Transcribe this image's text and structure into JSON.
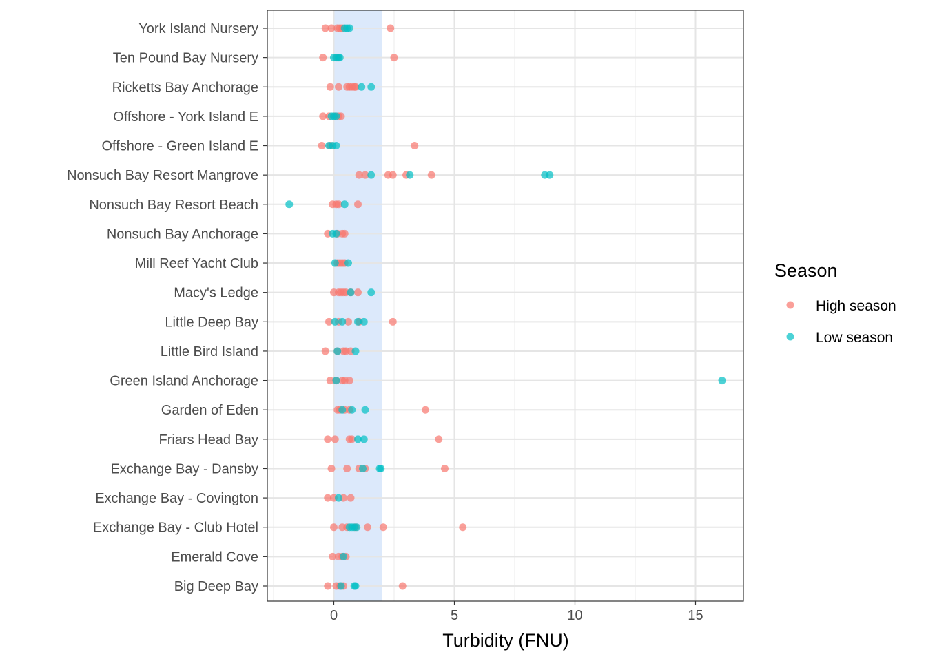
{
  "chart_data": {
    "type": "scatter",
    "xlabel": "Turbidity (FNU)",
    "ylabel": "",
    "xlim": [
      -2.7,
      17.0
    ],
    "x_ticks": [
      0,
      5,
      10,
      15
    ],
    "x_tick_labels": [
      "0",
      "5",
      "10",
      "15"
    ],
    "grid": true,
    "shaded_band": {
      "from": 0,
      "to": 2,
      "color": "#dce9fb"
    },
    "legend": {
      "title": "Season",
      "placement": "right"
    },
    "categories": [
      "York Island Nursery",
      "Ten Pound Bay Nursery",
      "Ricketts Bay Anchorage",
      "Offshore - York Island E",
      "Offshore - Green Island E",
      "Nonsuch Bay Resort Mangrove",
      "Nonsuch Bay Resort Beach",
      "Nonsuch Bay Anchorage",
      "Mill Reef Yacht Club",
      "Macy's Ledge",
      "Little Deep Bay",
      "Little Bird Island",
      "Green Island Anchorage",
      "Garden of Eden",
      "Friars Head Bay",
      "Exchange Bay - Dansby",
      "Exchange Bay - Covington",
      "Exchange Bay - Club Hotel",
      "Emerald Cove",
      "Big Deep Bay"
    ],
    "series": [
      {
        "name": "High season",
        "color": "#f8766d",
        "points": [
          {
            "site": "York Island Nursery",
            "x": [
              -0.35,
              -0.1,
              0.15,
              0.25,
              0.35,
              2.35
            ]
          },
          {
            "site": "Ten Pound Bay Nursery",
            "x": [
              -0.45,
              0.15,
              2.5
            ]
          },
          {
            "site": "Ricketts Bay Anchorage",
            "x": [
              -0.15,
              0.2,
              0.55,
              0.65,
              0.75,
              0.85,
              0.9
            ]
          },
          {
            "site": "Offshore - York Island E",
            "x": [
              -0.45,
              -0.2,
              0.05,
              0.2,
              0.3
            ]
          },
          {
            "site": "Offshore - Green Island E",
            "x": [
              -0.5,
              -0.15,
              3.35
            ]
          },
          {
            "site": "Nonsuch Bay Resort Mangrove",
            "x": [
              1.05,
              1.3,
              2.25,
              2.45,
              3.0,
              4.05
            ]
          },
          {
            "site": "Nonsuch Bay Resort Beach",
            "x": [
              -0.05,
              0.1,
              0.2,
              1.0
            ]
          },
          {
            "site": "Nonsuch Bay Anchorage",
            "x": [
              -0.25,
              0.15,
              0.35,
              0.45
            ]
          },
          {
            "site": "Mill Reef Yacht Club",
            "x": [
              0.15,
              0.25,
              0.35,
              0.45
            ]
          },
          {
            "site": "Macy's Ledge",
            "x": [
              0.0,
              0.2,
              0.3,
              0.4,
              0.5,
              0.7,
              1.0
            ]
          },
          {
            "site": "Little Deep Bay",
            "x": [
              -0.2,
              0.2,
              0.6,
              1.05,
              2.45
            ]
          },
          {
            "site": "Little Bird Island",
            "x": [
              -0.35,
              0.15,
              0.4,
              0.5,
              0.7
            ]
          },
          {
            "site": "Green Island Anchorage",
            "x": [
              -0.15,
              0.1,
              0.35,
              0.45,
              0.65
            ]
          },
          {
            "site": "Garden of Eden",
            "x": [
              0.15,
              0.25,
              0.45,
              0.65,
              3.8
            ]
          },
          {
            "site": "Friars Head Bay",
            "x": [
              -0.25,
              0.05,
              0.65,
              0.75,
              4.35
            ]
          },
          {
            "site": "Exchange Bay - Dansby",
            "x": [
              -0.1,
              0.55,
              1.05,
              1.3,
              4.6
            ]
          },
          {
            "site": "Exchange Bay - Covington",
            "x": [
              -0.25,
              0.0,
              0.4,
              0.7
            ]
          },
          {
            "site": "Exchange Bay - Club Hotel",
            "x": [
              0.0,
              0.35,
              0.55,
              0.9,
              1.4,
              2.05,
              5.35
            ]
          },
          {
            "site": "Emerald Cove",
            "x": [
              -0.05,
              0.2,
              0.35,
              0.5
            ]
          },
          {
            "site": "Big Deep Bay",
            "x": [
              -0.25,
              0.1,
              0.25,
              0.4,
              2.85
            ]
          }
        ]
      },
      {
        "name": "Low season",
        "color": "#00bfc4",
        "points": [
          {
            "site": "York Island Nursery",
            "x": [
              0.45,
              0.55,
              0.65
            ]
          },
          {
            "site": "Ten Pound Bay Nursery",
            "x": [
              0.0,
              0.1,
              0.2,
              0.25
            ]
          },
          {
            "site": "Ricketts Bay Anchorage",
            "x": [
              1.15,
              1.55
            ]
          },
          {
            "site": "Offshore - York Island E",
            "x": [
              -0.1,
              0.0,
              0.1
            ]
          },
          {
            "site": "Offshore - Green Island E",
            "x": [
              -0.2,
              -0.05,
              0.1
            ]
          },
          {
            "site": "Nonsuch Bay Resort Mangrove",
            "x": [
              1.55,
              3.15,
              8.75,
              8.95
            ]
          },
          {
            "site": "Nonsuch Bay Resort Beach",
            "x": [
              -1.85,
              0.45
            ]
          },
          {
            "site": "Nonsuch Bay Anchorage",
            "x": [
              -0.05,
              0.1
            ]
          },
          {
            "site": "Mill Reef Yacht Club",
            "x": [
              0.05,
              0.6
            ]
          },
          {
            "site": "Macy's Ledge",
            "x": [
              0.7,
              1.55
            ]
          },
          {
            "site": "Little Deep Bay",
            "x": [
              0.05,
              0.35,
              1.0,
              1.25
            ]
          },
          {
            "site": "Little Bird Island",
            "x": [
              0.15,
              0.9
            ]
          },
          {
            "site": "Green Island Anchorage",
            "x": [
              0.1,
              16.1
            ]
          },
          {
            "site": "Garden of Eden",
            "x": [
              0.35,
              0.75,
              1.3
            ]
          },
          {
            "site": "Friars Head Bay",
            "x": [
              1.0,
              1.25
            ]
          },
          {
            "site": "Exchange Bay - Dansby",
            "x": [
              1.2,
              1.9,
              1.95
            ]
          },
          {
            "site": "Exchange Bay - Covington",
            "x": [
              0.2
            ]
          },
          {
            "site": "Exchange Bay - Club Hotel",
            "x": [
              0.65,
              0.75,
              0.85,
              0.95
            ]
          },
          {
            "site": "Emerald Cove",
            "x": [
              0.4
            ]
          },
          {
            "site": "Big Deep Bay",
            "x": [
              0.3,
              0.85,
              0.9
            ]
          }
        ]
      }
    ]
  }
}
